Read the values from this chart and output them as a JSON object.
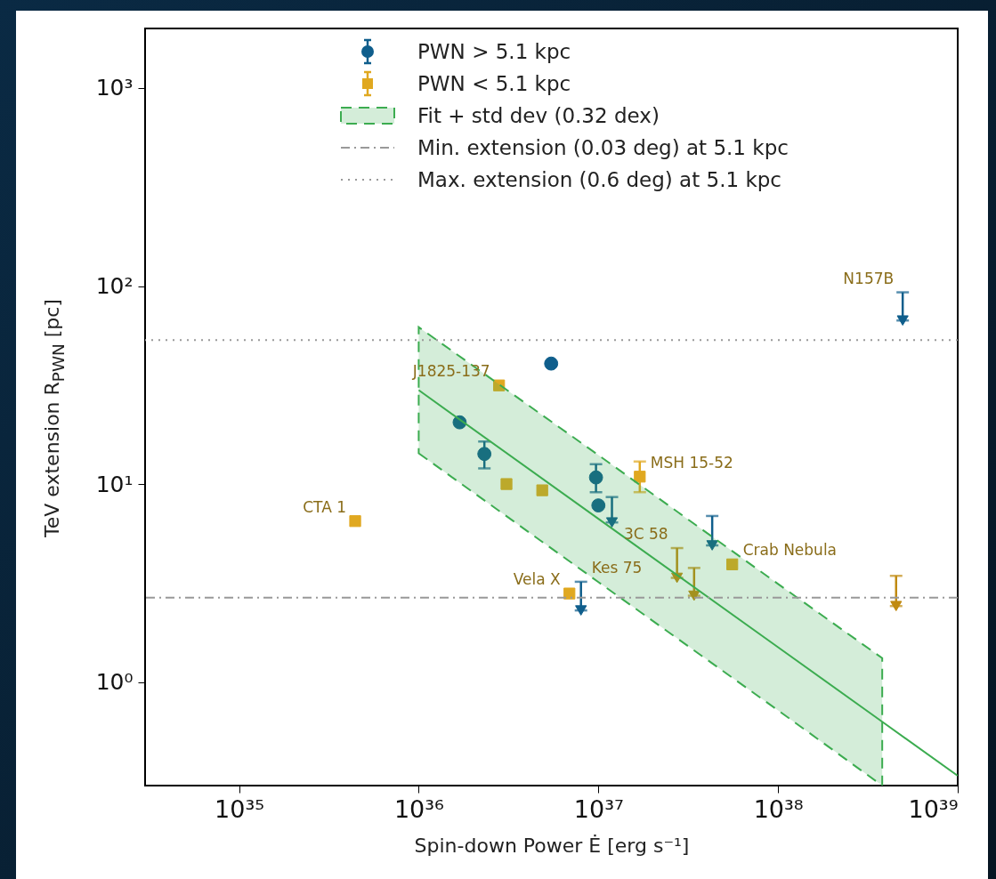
{
  "chart_data": {
    "type": "scatter",
    "xlabel": "Spin-down Power Ė [erg s⁻¹]",
    "ylabel": "TeV extension R$_{PWN}$ [pc]",
    "log": "xy",
    "xlim": [
      3e+34,
      1e+39
    ],
    "ylim": [
      0.3,
      2000
    ],
    "xticks": [
      {
        "value": 1e+35,
        "label": "10³⁵"
      },
      {
        "value": 1e+36,
        "label": "10³⁶"
      },
      {
        "value": 1e+37,
        "label": "10³⁷"
      },
      {
        "value": 1e+38,
        "label": "10³⁸"
      },
      {
        "value": 1e+39,
        "label": "10³⁹"
      }
    ],
    "yticks": [
      {
        "value": 1,
        "label": "10⁰"
      },
      {
        "value": 10,
        "label": "10¹"
      },
      {
        "value": 100,
        "label": "10²"
      },
      {
        "value": 1000,
        "label": "10³"
      }
    ],
    "grid": false,
    "legend": "top",
    "series": [
      {
        "name": "PWN > 5.1 kpc",
        "type": "scatter",
        "marker": "circle",
        "color": "#0f5e8c",
        "x": [
          5.46e+36,
          1.69e+36,
          2.32e+36,
          9.7e+36,
          1e+37
        ],
        "values": [
          40.6,
          20.5,
          14.2,
          10.8,
          7.8
        ],
        "errors": [
          null,
          null,
          [
            12.0,
            16.4
          ],
          [
            9.1,
            12.6
          ],
          null
        ]
      },
      {
        "type": "scatter",
        "marker": "triangle",
        "color": "#0f5e8c",
        "x": [
          1.19e+37,
          8e+36,
          4.3e+37,
          4.94e+38
        ],
        "values": [
          6.4,
          2.3,
          4.9,
          67
        ],
        "errors": [
          [
            6.4,
            8.6
          ],
          [
            2.3,
            3.21
          ],
          [
            4.9,
            6.9
          ],
          [
            67,
            93
          ]
        ]
      },
      {
        "name": "PWN < 5.1 kpc",
        "type": "scatter",
        "marker": "square",
        "color": "#e0a820",
        "x": [
          4.43e+35,
          2.8e+36,
          3.08e+36,
          4.87e+36,
          6.9e+36,
          1.7e+37,
          5.56e+37
        ],
        "values": [
          6.5,
          31.5,
          10.0,
          9.3,
          2.8,
          10.9,
          3.93
        ],
        "errors": [
          null,
          null,
          null,
          null,
          null,
          [
            9.1,
            13.0
          ],
          null
        ]
      },
      {
        "type": "scatter",
        "marker": "triangle",
        "color": "#c08a10",
        "x": [
          2.74e+37,
          3.41e+37,
          4.54e+38
        ],
        "values": [
          3.36,
          2.73,
          2.42
        ],
        "errors": [
          [
            3.36,
            4.75
          ],
          [
            2.73,
            3.77
          ],
          [
            2.42,
            3.44
          ]
        ]
      },
      {
        "name": "Fit + std dev (0.32 dex)",
        "type": "line",
        "line_style": "solid",
        "marker": "none",
        "color": "#3cac50",
        "x": [
          1e+36,
          1e+37,
          1e+38,
          3.8e+38,
          1e+39
        ],
        "values": [
          29.8,
          6.68,
          1.5,
          0.63,
          0.336
        ],
        "lower": [
          14.3,
          3.2,
          0.72,
          0.3,
          null
        ],
        "upper": [
          62,
          14.0,
          3.13,
          1.32,
          null
        ]
      }
    ],
    "ref_lines": [
      {
        "axis": "y",
        "value": 2.67,
        "label": "Min. extension (0.03 deg) at 5.1 kpc",
        "color": "#999999",
        "line_style": "dashdot"
      },
      {
        "axis": "y",
        "value": 53.4,
        "label": "Max. extension (0.6 deg) at 5.1 kpc",
        "color": "#999999",
        "line_style": "dotted"
      }
    ],
    "annotations": [
      {
        "text": "N157B",
        "x": 4.94e+38,
        "y": 93
      },
      {
        "text": "J1825-137",
        "x": 2.8e+36,
        "y": 31.5
      },
      {
        "text": "CTA 1",
        "x": 4.43e+35,
        "y": 6.5
      },
      {
        "text": "Vela X",
        "x": 6.9e+36,
        "y": 2.8
      },
      {
        "text": "Kes 75",
        "x": 8e+36,
        "y": 3.21
      },
      {
        "text": "3C 58",
        "x": 2.74e+37,
        "y": 4.75
      },
      {
        "text": "MSH 15-52",
        "x": 1.7e+37,
        "y": 10.9
      },
      {
        "text": "Crab Nebula",
        "x": 5.56e+37,
        "y": 3.93
      }
    ]
  }
}
